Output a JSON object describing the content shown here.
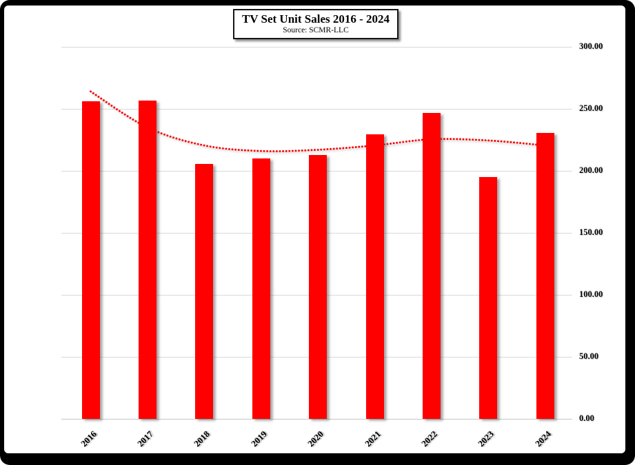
{
  "chart_data": {
    "type": "bar",
    "title": "TV Set Unit Sales 2016 - 2024",
    "subtitle": "Source: SCMR-LLC",
    "categories": [
      "2016",
      "2017",
      "2018",
      "2019",
      "2020",
      "2021",
      "2022",
      "2023",
      "2024"
    ],
    "series": [
      {
        "name": "TV Set Unit Sales",
        "type": "bar",
        "color": "#fe0000",
        "values": [
          256.0,
          256.5,
          205.5,
          210.0,
          213.0,
          229.5,
          246.5,
          195.0,
          230.5
        ]
      },
      {
        "name": "Trendline",
        "type": "line",
        "style": "dotted",
        "color": "#fe0000",
        "values": [
          264.0,
          235.0,
          220.5,
          216.0,
          217.0,
          220.5,
          225.5,
          224.5,
          220.5
        ]
      }
    ],
    "ylim": [
      0,
      300
    ],
    "ytick_step": 50,
    "ytick_labels": [
      "0.00",
      "50.00",
      "100.00",
      "150.00",
      "200.00",
      "250.00",
      "300.00"
    ],
    "yaxis_position": "right",
    "xlabel": "",
    "ylabel": "",
    "grid": "horizontal",
    "gridline_color": "#d9d9d9",
    "legend": "none"
  }
}
